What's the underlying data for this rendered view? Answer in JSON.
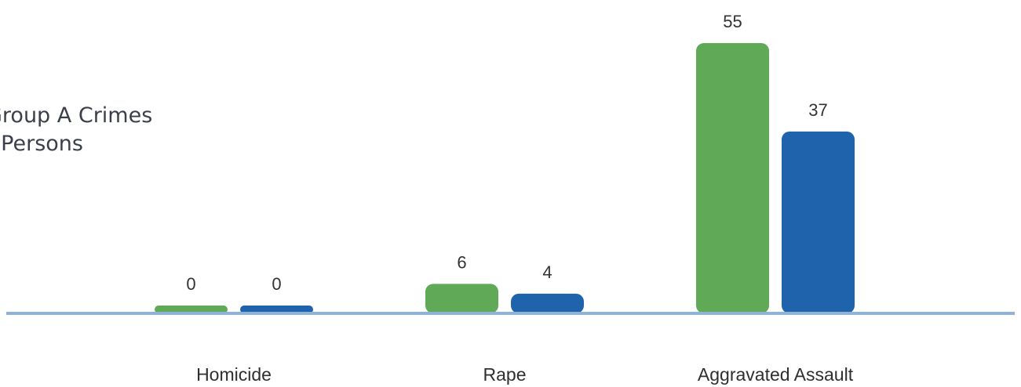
{
  "title_lines": [
    "Group A Crimes",
    "t Persons"
  ],
  "chart_data": {
    "type": "bar",
    "title": "Group A Crimes t Persons",
    "categories": [
      "Homicide",
      "Rape",
      "Aggravated Assault"
    ],
    "series": [
      {
        "values": [
          0,
          6,
          55
        ],
        "color": "#5fa957"
      },
      {
        "values": [
          0,
          4,
          37
        ],
        "color": "#1f63ad"
      }
    ],
    "ylim": [
      0,
      55
    ],
    "grid": false,
    "baseline_color": "#8fb3d6",
    "data_labels": true
  }
}
